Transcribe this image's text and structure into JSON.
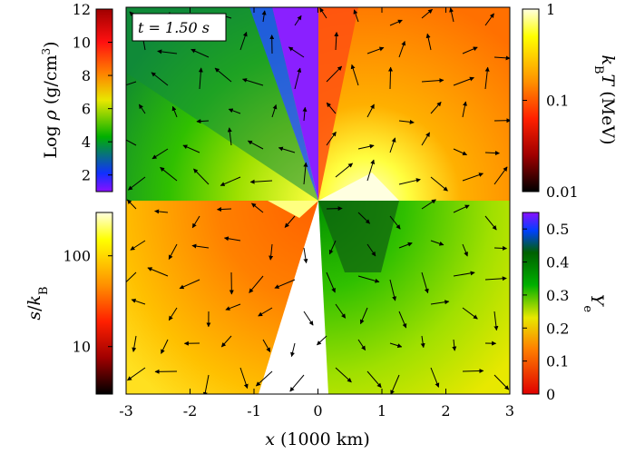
{
  "time_label": "t = 1.50 s",
  "chart_data": {
    "type": "heatmap",
    "description_panels": [
      {
        "quadrant": "top-left",
        "quantity": "Log ρ (g/cm^3)",
        "scale": "linear",
        "colorbar_range": [
          1,
          12
        ],
        "colorbar_ticks": [
          "2",
          "4",
          "6",
          "8",
          "10",
          "12"
        ],
        "colormap": [
          "#8a10ff",
          "#1030ff",
          "#00b000",
          "#e8e800",
          "#ff8000",
          "#ff1010",
          "#a00000"
        ]
      },
      {
        "quadrant": "top-right",
        "quantity": "k_B T (MeV)",
        "scale": "log",
        "colorbar_range": [
          0.01,
          1
        ],
        "colorbar_ticks": [
          "0.01",
          "0.1",
          "1"
        ],
        "colormap": [
          "#000000",
          "#a00000",
          "#ff2000",
          "#ff9000",
          "#ffff00",
          "#ffffe0"
        ]
      },
      {
        "quadrant": "bottom-left",
        "quantity": "s/k_B",
        "scale": "log",
        "colorbar_range": [
          3,
          300
        ],
        "colorbar_ticks": [
          "10",
          "100"
        ],
        "colormap": [
          "#000000",
          "#a00000",
          "#ff2000",
          "#ff9000",
          "#ffff00",
          "#ffffe0"
        ]
      },
      {
        "quadrant": "bottom-right",
        "quantity": "Y_e",
        "scale": "linear",
        "colorbar_range": [
          0,
          0.55
        ],
        "colorbar_ticks": [
          "0",
          "0.1",
          "0.2",
          "0.3",
          "0.4",
          "0.5"
        ],
        "colormap": [
          "#e00000",
          "#ff8000",
          "#e8e800",
          "#00b000",
          "#006000",
          "#0040ff",
          "#8a10ff"
        ]
      }
    ],
    "x_axis": {
      "label": "x (1000 km)",
      "range": [
        -3,
        3
      ],
      "ticks": [
        "-3",
        "-2",
        "-1",
        "0",
        "1",
        "2",
        "3"
      ]
    },
    "velocity_field": "arrows",
    "grid": false
  },
  "labels": {
    "rho_prefix": "Log ",
    "rho_symbol": "ρ",
    "rho_unit": " (g/cm",
    "rho_exp": "3",
    "rho_close": ")",
    "kt_k": "k",
    "kt_sub": "B",
    "kt_T": "T",
    "kt_unit": " (MeV)",
    "s_s": "s",
    "s_slash": "/",
    "s_k": "k",
    "s_sub": "B",
    "ye_Y": "Y",
    "ye_sub": "e",
    "x_var": "x",
    "x_unit": " (1000 km)"
  }
}
